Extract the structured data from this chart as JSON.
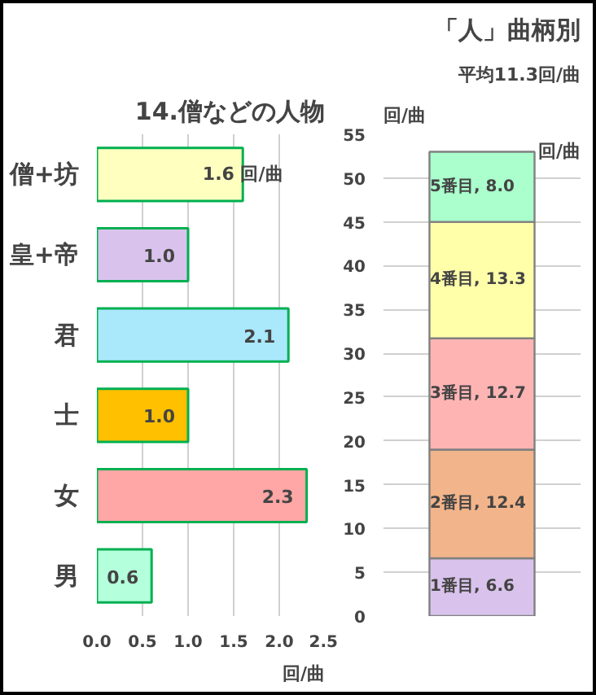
{
  "chart_data": [
    {
      "type": "bar",
      "orientation": "horizontal",
      "title": "14.僧などの人物",
      "xlabel": "回/曲",
      "categories": [
        "僧+坊",
        "皇+帝",
        "君",
        "士",
        "女",
        "男"
      ],
      "values": [
        1.6,
        1.0,
        2.1,
        1.0,
        2.3,
        0.6
      ],
      "colors": [
        "#ffffc0",
        "#d9c3ec",
        "#aae8fc",
        "#ffc000",
        "#ffa6a6",
        "#b4ffdc"
      ],
      "value_labels": [
        "1.6 回/曲",
        "1.0",
        "2.1",
        "1.0",
        "2.3",
        "0.6"
      ],
      "xlim": [
        0,
        2.5
      ],
      "xticks": [
        {
          "value": 0,
          "label": "0.0"
        },
        0.5,
        {
          "value": 1,
          "label": "1.0"
        },
        1.5,
        {
          "value": 2,
          "label": "2.0"
        },
        2.5
      ],
      "grid": "x"
    },
    {
      "type": "bar",
      "stacked": true,
      "title": "「人」曲柄別",
      "ylabel": "回/曲",
      "categories": [
        null
      ],
      "series": [
        {
          "name": "1番目",
          "color": "#d9c3ec",
          "values": [
            6.6
          ],
          "value_labels": [
            ", 6.6"
          ]
        },
        {
          "name": "2番目",
          "color": "#f2b48a",
          "values": [
            12.4
          ],
          "value_labels": [
            ", 12.4"
          ]
        },
        {
          "name": "3番目",
          "color": "#ffb4b4",
          "values": [
            12.7
          ],
          "value_labels": [
            ", 12.7"
          ]
        },
        {
          "name": "4番目",
          "color": "#ffffaa",
          "values": [
            13.3
          ],
          "value_labels": [
            ", 13.3"
          ]
        },
        {
          "name": "5番目",
          "color": "#aaffcc",
          "values": [
            8.0
          ],
          "value_labels": [
            ", 8.0"
          ]
        }
      ],
      "annotations": [
        "平均11.3回/曲",
        "回/曲"
      ],
      "ylim": [
        0,
        55
      ],
      "yticks": [
        0,
        5,
        10,
        15,
        20,
        25,
        30,
        35,
        40,
        45,
        50,
        55
      ],
      "grid": "y",
      "tick_labels": "y"
    }
  ]
}
